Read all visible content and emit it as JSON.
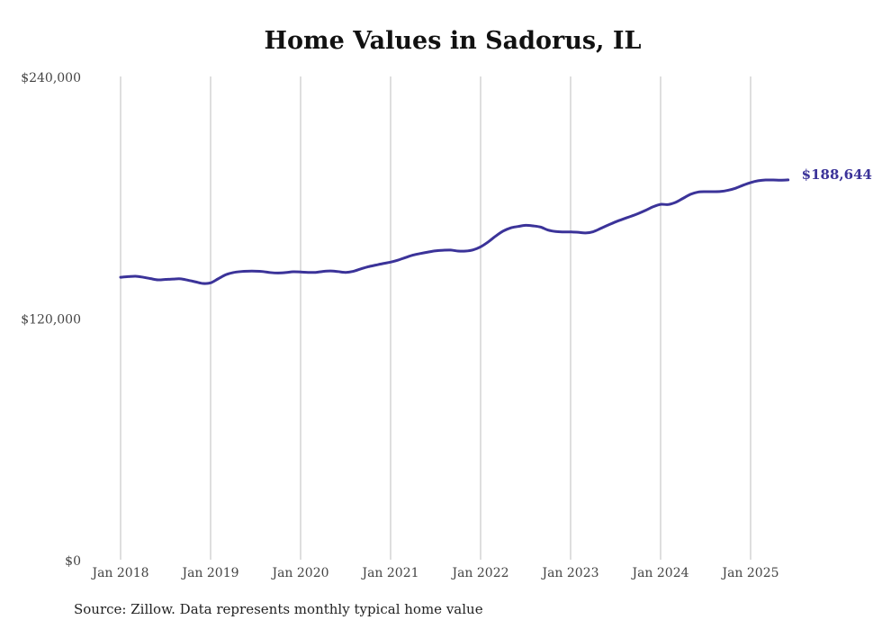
{
  "chart_data": {
    "type": "line",
    "title": "Home Values in Sadorus, IL",
    "xlabel": "",
    "ylabel": "",
    "ylim": [
      0,
      240000
    ],
    "yticks": [
      0,
      120000,
      240000
    ],
    "ytick_labels": [
      "$0",
      "$120,000",
      "$240,000"
    ],
    "xticks": [
      "Jan 2018",
      "Jan 2019",
      "Jan 2020",
      "Jan 2021",
      "Jan 2022",
      "Jan 2023",
      "Jan 2024",
      "Jan 2025"
    ],
    "grid": "vertical",
    "x_start": "Jan 2018",
    "x_frequency": "monthly",
    "series": [
      {
        "name": "Typical home value",
        "color": "#3b3399",
        "values": [
          140300,
          140600,
          140800,
          140300,
          139600,
          139000,
          139200,
          139400,
          139500,
          138800,
          138000,
          137200,
          137500,
          139500,
          141500,
          142600,
          143100,
          143300,
          143300,
          143100,
          142600,
          142400,
          142600,
          143000,
          142900,
          142700,
          142700,
          143200,
          143400,
          143100,
          142700,
          143200,
          144400,
          145500,
          146300,
          147100,
          147800,
          148800,
          150100,
          151300,
          152100,
          152800,
          153400,
          153700,
          153800,
          153300,
          153300,
          153900,
          155400,
          157800,
          160700,
          163200,
          164800,
          165500,
          166100,
          165800,
          165200,
          163700,
          163000,
          162800,
          162800,
          162600,
          162300,
          162900,
          164500,
          166200,
          167800,
          169200,
          170500,
          171900,
          173500,
          175300,
          176500,
          176400,
          177500,
          179500,
          181500,
          182600,
          182800,
          182800,
          182900,
          183500,
          184500,
          186000,
          187300,
          188200,
          188600,
          188600,
          188500,
          188644
        ]
      }
    ],
    "end_label": "$188,644"
  },
  "source": "Source: Zillow. Data represents monthly typical home value"
}
